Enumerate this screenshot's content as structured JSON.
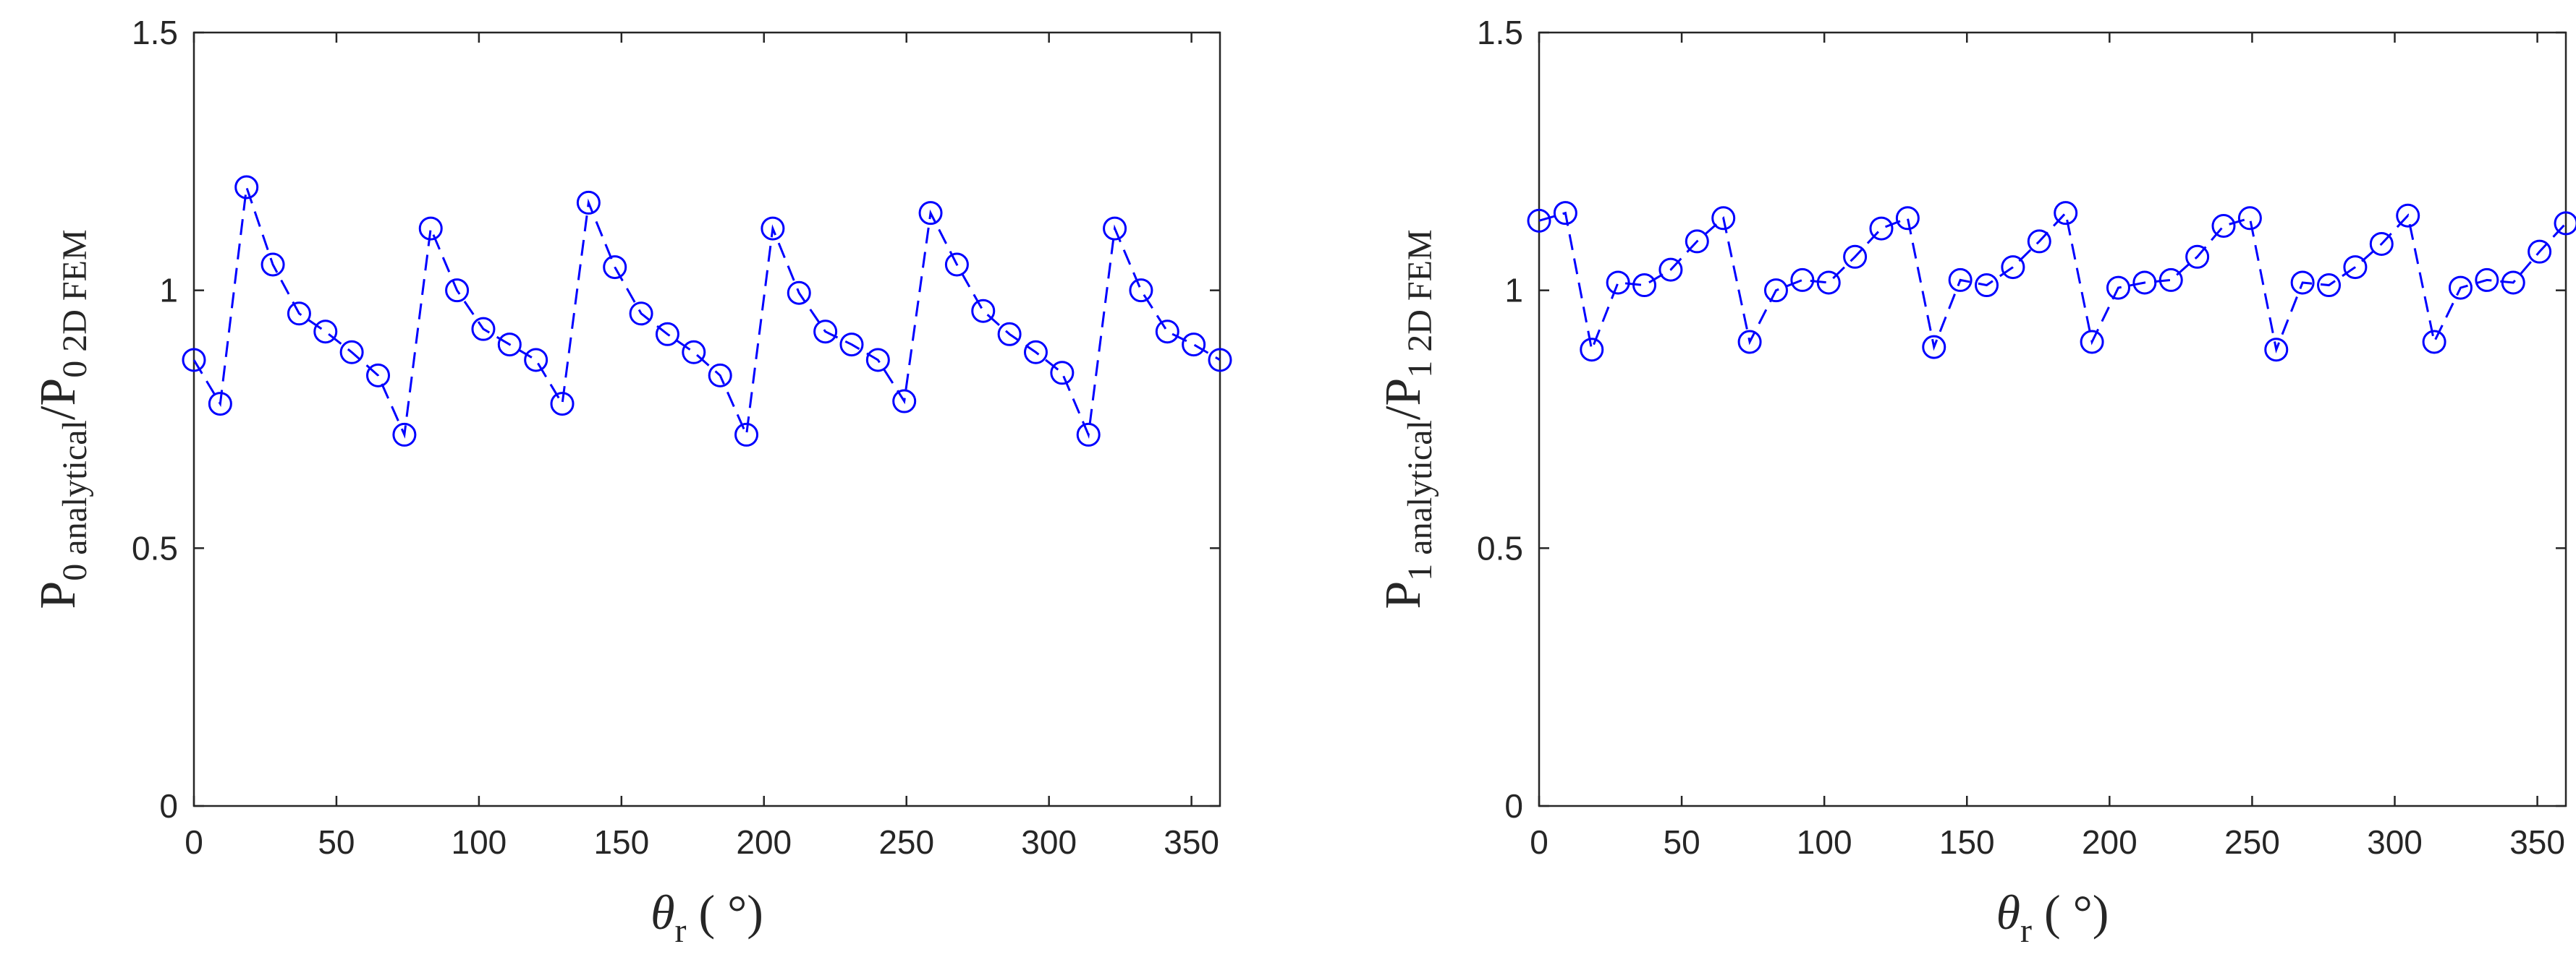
{
  "chart_data": [
    {
      "type": "line",
      "x_label": {
        "symbol": "θ",
        "sub": "r",
        "units": " ( °)"
      },
      "y_label": {
        "main": "P",
        "sub0": "0 analytical",
        "sep": "/P",
        "sub1": "0 2D FEM"
      },
      "xlim": [
        0,
        360
      ],
      "ylim": [
        0,
        1.5
      ],
      "xticks": [
        "0",
        "50",
        "100",
        "150",
        "200",
        "250",
        "300",
        "350"
      ],
      "yticks": [
        "0",
        "0.5",
        "1",
        "1.5"
      ],
      "line_style": "dashed",
      "marker": "circle",
      "color": "#0000ff",
      "x": [
        0,
        9.23,
        18.46,
        27.69,
        36.92,
        46.15,
        55.38,
        64.62,
        73.85,
        83.08,
        92.31,
        101.54,
        110.77,
        120,
        129.23,
        138.46,
        147.69,
        156.92,
        166.15,
        175.38,
        184.62,
        193.85,
        203.08,
        212.31,
        221.54,
        230.77,
        240,
        249.23,
        258.46,
        267.69,
        276.92,
        286.15,
        295.38,
        304.62,
        313.85,
        323.08,
        332.31,
        341.54,
        350.77,
        360
      ],
      "y": [
        0.865,
        0.78,
        1.2,
        1.05,
        0.955,
        0.92,
        0.88,
        0.835,
        0.72,
        1.12,
        1.0,
        0.925,
        0.895,
        0.865,
        0.78,
        1.17,
        1.045,
        0.955,
        0.915,
        0.88,
        0.835,
        0.72,
        1.12,
        0.995,
        0.92,
        0.895,
        0.865,
        0.785,
        1.15,
        1.05,
        0.96,
        0.915,
        0.88,
        0.84,
        0.72,
        1.12,
        1.0,
        0.92,
        0.895,
        0.865
      ]
    },
    {
      "type": "line",
      "x_label": {
        "symbol": "θ",
        "sub": "r",
        "units": " ( °)"
      },
      "y_label": {
        "main": "P",
        "sub0": "1 analytical",
        "sep": "/P",
        "sub1": "1 2D FEM"
      },
      "xlim": [
        0,
        360
      ],
      "ylim": [
        0,
        1.5
      ],
      "xticks": [
        "0",
        "50",
        "100",
        "150",
        "200",
        "250",
        "300",
        "350"
      ],
      "yticks": [
        "0",
        "0.5",
        "1",
        "1.5"
      ],
      "line_style": "dashed",
      "marker": "circle",
      "color": "#0000ff",
      "x": [
        0,
        9.23,
        18.46,
        27.69,
        36.92,
        46.15,
        55.38,
        64.62,
        73.85,
        83.08,
        92.31,
        101.54,
        110.77,
        120,
        129.23,
        138.46,
        147.69,
        156.92,
        166.15,
        175.38,
        184.62,
        193.85,
        203.08,
        212.31,
        221.54,
        230.77,
        240,
        249.23,
        258.46,
        267.69,
        276.92,
        286.15,
        295.38,
        304.62,
        313.85,
        323.08,
        332.31,
        341.54,
        350.77,
        360
      ],
      "y": [
        1.135,
        1.15,
        0.885,
        1.015,
        1.01,
        1.04,
        1.095,
        1.14,
        0.9,
        1.0,
        1.02,
        1.015,
        1.065,
        1.12,
        1.14,
        0.89,
        1.02,
        1.01,
        1.045,
        1.095,
        1.15,
        0.9,
        1.005,
        1.015,
        1.02,
        1.065,
        1.125,
        1.14,
        0.885,
        1.015,
        1.01,
        1.045,
        1.09,
        1.145,
        0.9,
        1.005,
        1.02,
        1.015,
        1.075,
        1.13
      ]
    }
  ]
}
